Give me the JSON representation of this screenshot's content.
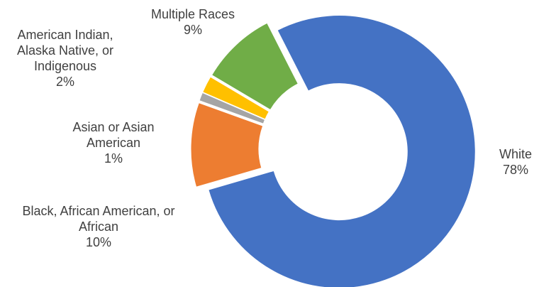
{
  "chart_data": {
    "type": "donut",
    "categories": [
      "White",
      "Black, African American, or African",
      "Asian or Asian American",
      "American Indian, Alaska Native, or Indigenous",
      "Multiple Races"
    ],
    "values": [
      78,
      10,
      1,
      2,
      9
    ],
    "value_labels": [
      "78%",
      "10%",
      "1%",
      "2%",
      "9%"
    ],
    "colors": [
      "#4472c4",
      "#ed7d31",
      "#a5a5a5",
      "#ffc000",
      "#70ad47"
    ]
  }
}
